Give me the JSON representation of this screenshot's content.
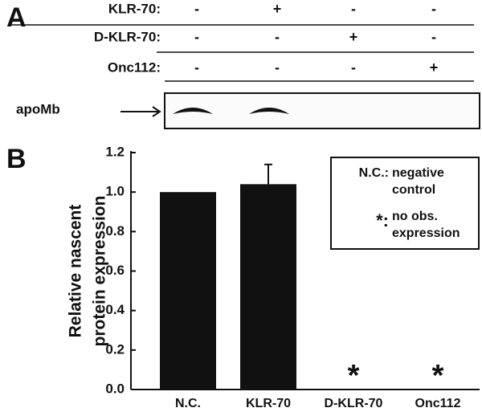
{
  "panel_a": {
    "label": "A",
    "rows": [
      {
        "name": "KLR-70:",
        "signs": [
          "-",
          "+",
          "-",
          "-"
        ]
      },
      {
        "name": "D-KLR-70:",
        "signs": [
          "-",
          "-",
          "+",
          "-"
        ]
      },
      {
        "name": "Onc112:",
        "signs": [
          "-",
          "-",
          "-",
          "+"
        ]
      }
    ],
    "band_label": "apoMb"
  },
  "chart_data": {
    "type": "bar",
    "panel_label": "B",
    "ylabel": [
      "Relative nascent",
      "protein expression"
    ],
    "categories": [
      "N.C.",
      "KLR-70",
      "D-KLR-70",
      "Onc112"
    ],
    "values": [
      1.0,
      1.04,
      0,
      0
    ],
    "errors": [
      null,
      0.1,
      null,
      null
    ],
    "markers": [
      null,
      null,
      "*",
      "*"
    ],
    "color": "#111111",
    "ylim": [
      0,
      1.2
    ],
    "yticks": [
      {
        "value": 0,
        "label": "0.0"
      },
      0.2,
      0.4,
      0.6,
      0.8,
      {
        "value": 1,
        "label": "1.0"
      },
      1.2
    ],
    "notes": [
      {
        "key": "N.C.:",
        "text": [
          "negative",
          "control"
        ]
      },
      {
        "key": "*:",
        "text": [
          "no obs.",
          "expression"
        ]
      }
    ]
  }
}
